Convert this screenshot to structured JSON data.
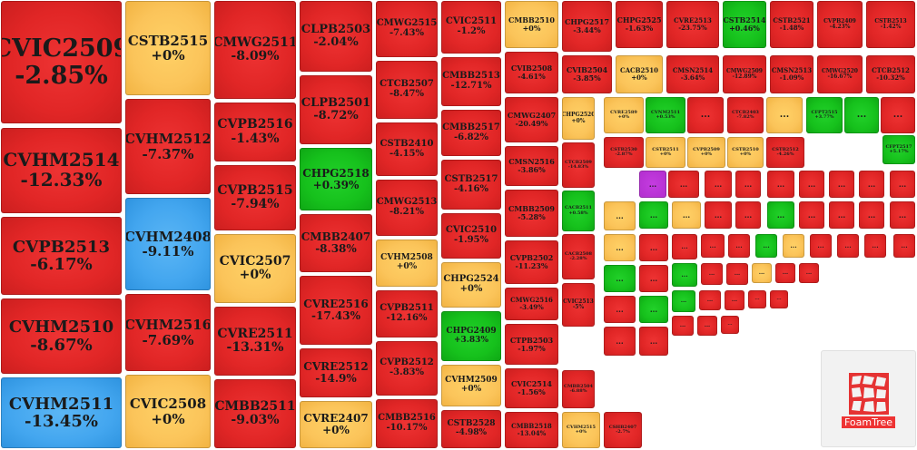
{
  "colors": {
    "red": "#e12626",
    "yellow": "#fbc45a",
    "green": "#16c11c",
    "blue": "#43a6ef",
    "purple": "#b32fcf"
  },
  "brand": {
    "logo_text": "FoamTree",
    "logo_icon": "foamtree-logo-icon"
  },
  "tiles": [
    {
      "name": "CVIC2509",
      "value": "-2.85%",
      "color": "red"
    },
    {
      "name": "CVHM2514",
      "value": "-12.33%",
      "color": "red"
    },
    {
      "name": "CVPB2513",
      "value": "-6.17%",
      "color": "red"
    },
    {
      "name": "CVHM2510",
      "value": "-8.67%",
      "color": "red"
    },
    {
      "name": "CVHM2511",
      "value": "-13.45%",
      "color": "blue"
    },
    {
      "name": "CSTB2515",
      "value": "+0%",
      "color": "yellow"
    },
    {
      "name": "CVHM2512",
      "value": "-7.37%",
      "color": "red"
    },
    {
      "name": "CVHM2408",
      "value": "-9.11%",
      "color": "blue"
    },
    {
      "name": "CVHM2516",
      "value": "-7.69%",
      "color": "red"
    },
    {
      "name": "CVIC2508",
      "value": "+0%",
      "color": "yellow"
    },
    {
      "name": "CMWG2511",
      "value": "-8.09%",
      "color": "red"
    },
    {
      "name": "CVPB2516",
      "value": "-1.43%",
      "color": "red"
    },
    {
      "name": "CVPB2515",
      "value": "-7.94%",
      "color": "red"
    },
    {
      "name": "CVIC2507",
      "value": "+0%",
      "color": "yellow"
    },
    {
      "name": "CVRE2511",
      "value": "-13.31%",
      "color": "red"
    },
    {
      "name": "CMBB2511",
      "value": "-9.03%",
      "color": "red"
    },
    {
      "name": "CLPB2503",
      "value": "-2.04%",
      "color": "red"
    },
    {
      "name": "CLPB2501",
      "value": "-8.72%",
      "color": "red"
    },
    {
      "name": "CHPG2518",
      "value": "+0.39%",
      "color": "green"
    },
    {
      "name": "CMBB2407",
      "value": "-8.38%",
      "color": "red"
    },
    {
      "name": "CVRE2516",
      "value": "-17.43%",
      "color": "red"
    },
    {
      "name": "CVRE2512",
      "value": "-14.9%",
      "color": "red"
    },
    {
      "name": "CVRE2407",
      "value": "+0%",
      "color": "yellow"
    },
    {
      "name": "CMWG2515",
      "value": "-7.43%",
      "color": "red"
    },
    {
      "name": "CTCB2507",
      "value": "-8.47%",
      "color": "red"
    },
    {
      "name": "CSTB2410",
      "value": "-4.15%",
      "color": "red"
    },
    {
      "name": "CMWG2513",
      "value": "-8.21%",
      "color": "red"
    },
    {
      "name": "CVHM2508",
      "value": "+0%",
      "color": "yellow"
    },
    {
      "name": "CVPB2511",
      "value": "-12.16%",
      "color": "red"
    },
    {
      "name": "CVPB2512",
      "value": "-3.83%",
      "color": "red"
    },
    {
      "name": "CMBB2516",
      "value": "-10.17%",
      "color": "red"
    },
    {
      "name": "CVIC2511",
      "value": "-1.2%",
      "color": "red"
    },
    {
      "name": "CMBB2513",
      "value": "-12.71%",
      "color": "red"
    },
    {
      "name": "CMBB2517",
      "value": "-6.82%",
      "color": "red"
    },
    {
      "name": "CSTB2517",
      "value": "-4.16%",
      "color": "red"
    },
    {
      "name": "CVIC2510",
      "value": "-1.95%",
      "color": "red"
    },
    {
      "name": "CHPG2524",
      "value": "+0%",
      "color": "yellow"
    },
    {
      "name": "CHPG2409",
      "value": "+3.83%",
      "color": "green"
    },
    {
      "name": "CVHM2509",
      "value": "+0%",
      "color": "yellow"
    },
    {
      "name": "CSTB2528",
      "value": "-4.98%",
      "color": "red"
    },
    {
      "name": "CMBB2510",
      "value": "+0%",
      "color": "yellow"
    },
    {
      "name": "CVIB2508",
      "value": "-4.61%",
      "color": "red"
    },
    {
      "name": "CMWG2407",
      "value": "-20.49%",
      "color": "red"
    },
    {
      "name": "CMSN2516",
      "value": "-3.86%",
      "color": "red"
    },
    {
      "name": "CMBB2509",
      "value": "-5.28%",
      "color": "red"
    },
    {
      "name": "CVPB2502",
      "value": "-11.23%",
      "color": "red"
    },
    {
      "name": "CMWG2516",
      "value": "-3.49%",
      "color": "red"
    },
    {
      "name": "CTPB2503",
      "value": "-1.97%",
      "color": "red"
    },
    {
      "name": "CVIC2514",
      "value": "-1.56%",
      "color": "red"
    },
    {
      "name": "CMBB2518",
      "value": "-13.04%",
      "color": "red"
    },
    {
      "name": "CHPG2517",
      "value": "-3.44%",
      "color": "red"
    },
    {
      "name": "CVIB2504",
      "value": "-3.85%",
      "color": "red"
    },
    {
      "name": "CHPG2520",
      "value": "+0%",
      "color": "yellow"
    },
    {
      "name": "CTCB2509",
      "value": "-14.83%",
      "color": "red"
    },
    {
      "name": "CACB2511",
      "value": "+0.58%",
      "color": "green"
    },
    {
      "name": "CACB2508",
      "value": "-2.28%",
      "color": "red"
    },
    {
      "name": "CVIC2513",
      "value": "-5%",
      "color": "red"
    },
    {
      "name": "CMBB2504",
      "value": "-6.88%",
      "color": "red"
    },
    {
      "name": "CVHM2515",
      "value": "+0%",
      "color": "yellow"
    },
    {
      "name": "CSHB2407",
      "value": "-2.7%",
      "color": "red"
    },
    {
      "name": "CHPG2525",
      "value": "-1.63%",
      "color": "red"
    },
    {
      "name": "CACB2510",
      "value": "+0%",
      "color": "yellow"
    },
    {
      "name": "CVRE2589",
      "value": "+0%",
      "color": "yellow"
    },
    {
      "name": "CVNM2511",
      "value": "+0.53%",
      "color": "green"
    },
    {
      "name": "CSTB2530",
      "value": "-2.87%",
      "color": "red"
    },
    {
      "name": "CSTB2511",
      "value": "+0%",
      "color": "yellow"
    },
    {
      "name": "CVRE2513",
      "value": "-23.75%",
      "color": "red"
    },
    {
      "name": "CMSN2514",
      "value": "-3.64%",
      "color": "red"
    },
    {
      "name": "CVPB2509",
      "value": "+0%",
      "color": "yellow"
    },
    {
      "name": "CSTB2514",
      "value": "+0.46%",
      "color": "green"
    },
    {
      "name": "CMWG2509",
      "value": "-12.89%",
      "color": "red"
    },
    {
      "name": "CTCB2403",
      "value": "-7.82%",
      "color": "red"
    },
    {
      "name": "CSTB2510",
      "value": "+0%",
      "color": "yellow"
    },
    {
      "name": "CSTB2521",
      "value": "-1.48%",
      "color": "red"
    },
    {
      "name": "CMSN2513",
      "value": "-1.09%",
      "color": "red"
    },
    {
      "name": "CSTB2512",
      "value": "-4.26%",
      "color": "red"
    },
    {
      "name": "CVPB2409",
      "value": "-4.23%",
      "color": "red"
    },
    {
      "name": "CMWG2520",
      "value": "-16.67%",
      "color": "red"
    },
    {
      "name": "CFPT2515",
      "value": "+3.77%",
      "color": "green"
    },
    {
      "name": "CSTB2513",
      "value": "-1.42%",
      "color": "red"
    },
    {
      "name": "CTCB2512",
      "value": "-10.32%",
      "color": "red"
    },
    {
      "name": "CFPT2517",
      "value": "+5.17%",
      "color": "green"
    }
  ],
  "small_tiles": [
    {
      "label": "...",
      "color": "red"
    },
    {
      "label": "...",
      "color": "yellow"
    },
    {
      "label": "...",
      "color": "green"
    },
    {
      "label": "...",
      "color": "red"
    },
    {
      "label": "...",
      "color": "purple"
    },
    {
      "label": "...",
      "color": "red"
    },
    {
      "label": "...",
      "color": "red"
    },
    {
      "label": "...",
      "color": "red"
    },
    {
      "label": "...",
      "color": "red"
    },
    {
      "label": "...",
      "color": "red"
    },
    {
      "label": "...",
      "color": "red"
    },
    {
      "label": "...",
      "color": "red"
    },
    {
      "label": "...",
      "color": "red"
    },
    {
      "label": "...",
      "color": "yellow"
    },
    {
      "label": "...",
      "color": "green"
    },
    {
      "label": "...",
      "color": "yellow"
    },
    {
      "label": "...",
      "color": "red"
    },
    {
      "label": "...",
      "color": "red"
    },
    {
      "label": "...",
      "color": "green"
    },
    {
      "label": "...",
      "color": "red"
    },
    {
      "label": "...",
      "color": "red"
    },
    {
      "label": "...",
      "color": "red"
    },
    {
      "label": "...",
      "color": "red"
    },
    {
      "label": "...",
      "color": "yellow"
    },
    {
      "label": "...",
      "color": "red"
    },
    {
      "label": "...",
      "color": "red"
    },
    {
      "label": "...",
      "color": "red"
    },
    {
      "label": "...",
      "color": "red"
    },
    {
      "label": "...",
      "color": "green"
    },
    {
      "label": "...",
      "color": "yellow"
    },
    {
      "label": "...",
      "color": "red"
    },
    {
      "label": "...",
      "color": "red"
    },
    {
      "label": "...",
      "color": "red"
    },
    {
      "label": "...",
      "color": "red"
    },
    {
      "label": "...",
      "color": "green"
    },
    {
      "label": "...",
      "color": "red"
    },
    {
      "label": "...",
      "color": "green"
    },
    {
      "label": "...",
      "color": "red"
    },
    {
      "label": "...",
      "color": "red"
    },
    {
      "label": "...",
      "color": "yellow"
    },
    {
      "label": "...",
      "color": "red"
    },
    {
      "label": "...",
      "color": "red"
    },
    {
      "label": "...",
      "color": "red"
    },
    {
      "label": "...",
      "color": "green"
    },
    {
      "label": "...",
      "color": "green"
    },
    {
      "label": "...",
      "color": "red"
    },
    {
      "label": "...",
      "color": "red"
    },
    {
      "label": "...",
      "color": "red"
    },
    {
      "label": "...",
      "color": "red"
    },
    {
      "label": "...",
      "color": "red"
    },
    {
      "label": "...",
      "color": "red"
    },
    {
      "label": "...",
      "color": "red"
    },
    {
      "label": "...",
      "color": "red"
    },
    {
      "label": "...",
      "color": "red"
    }
  ]
}
